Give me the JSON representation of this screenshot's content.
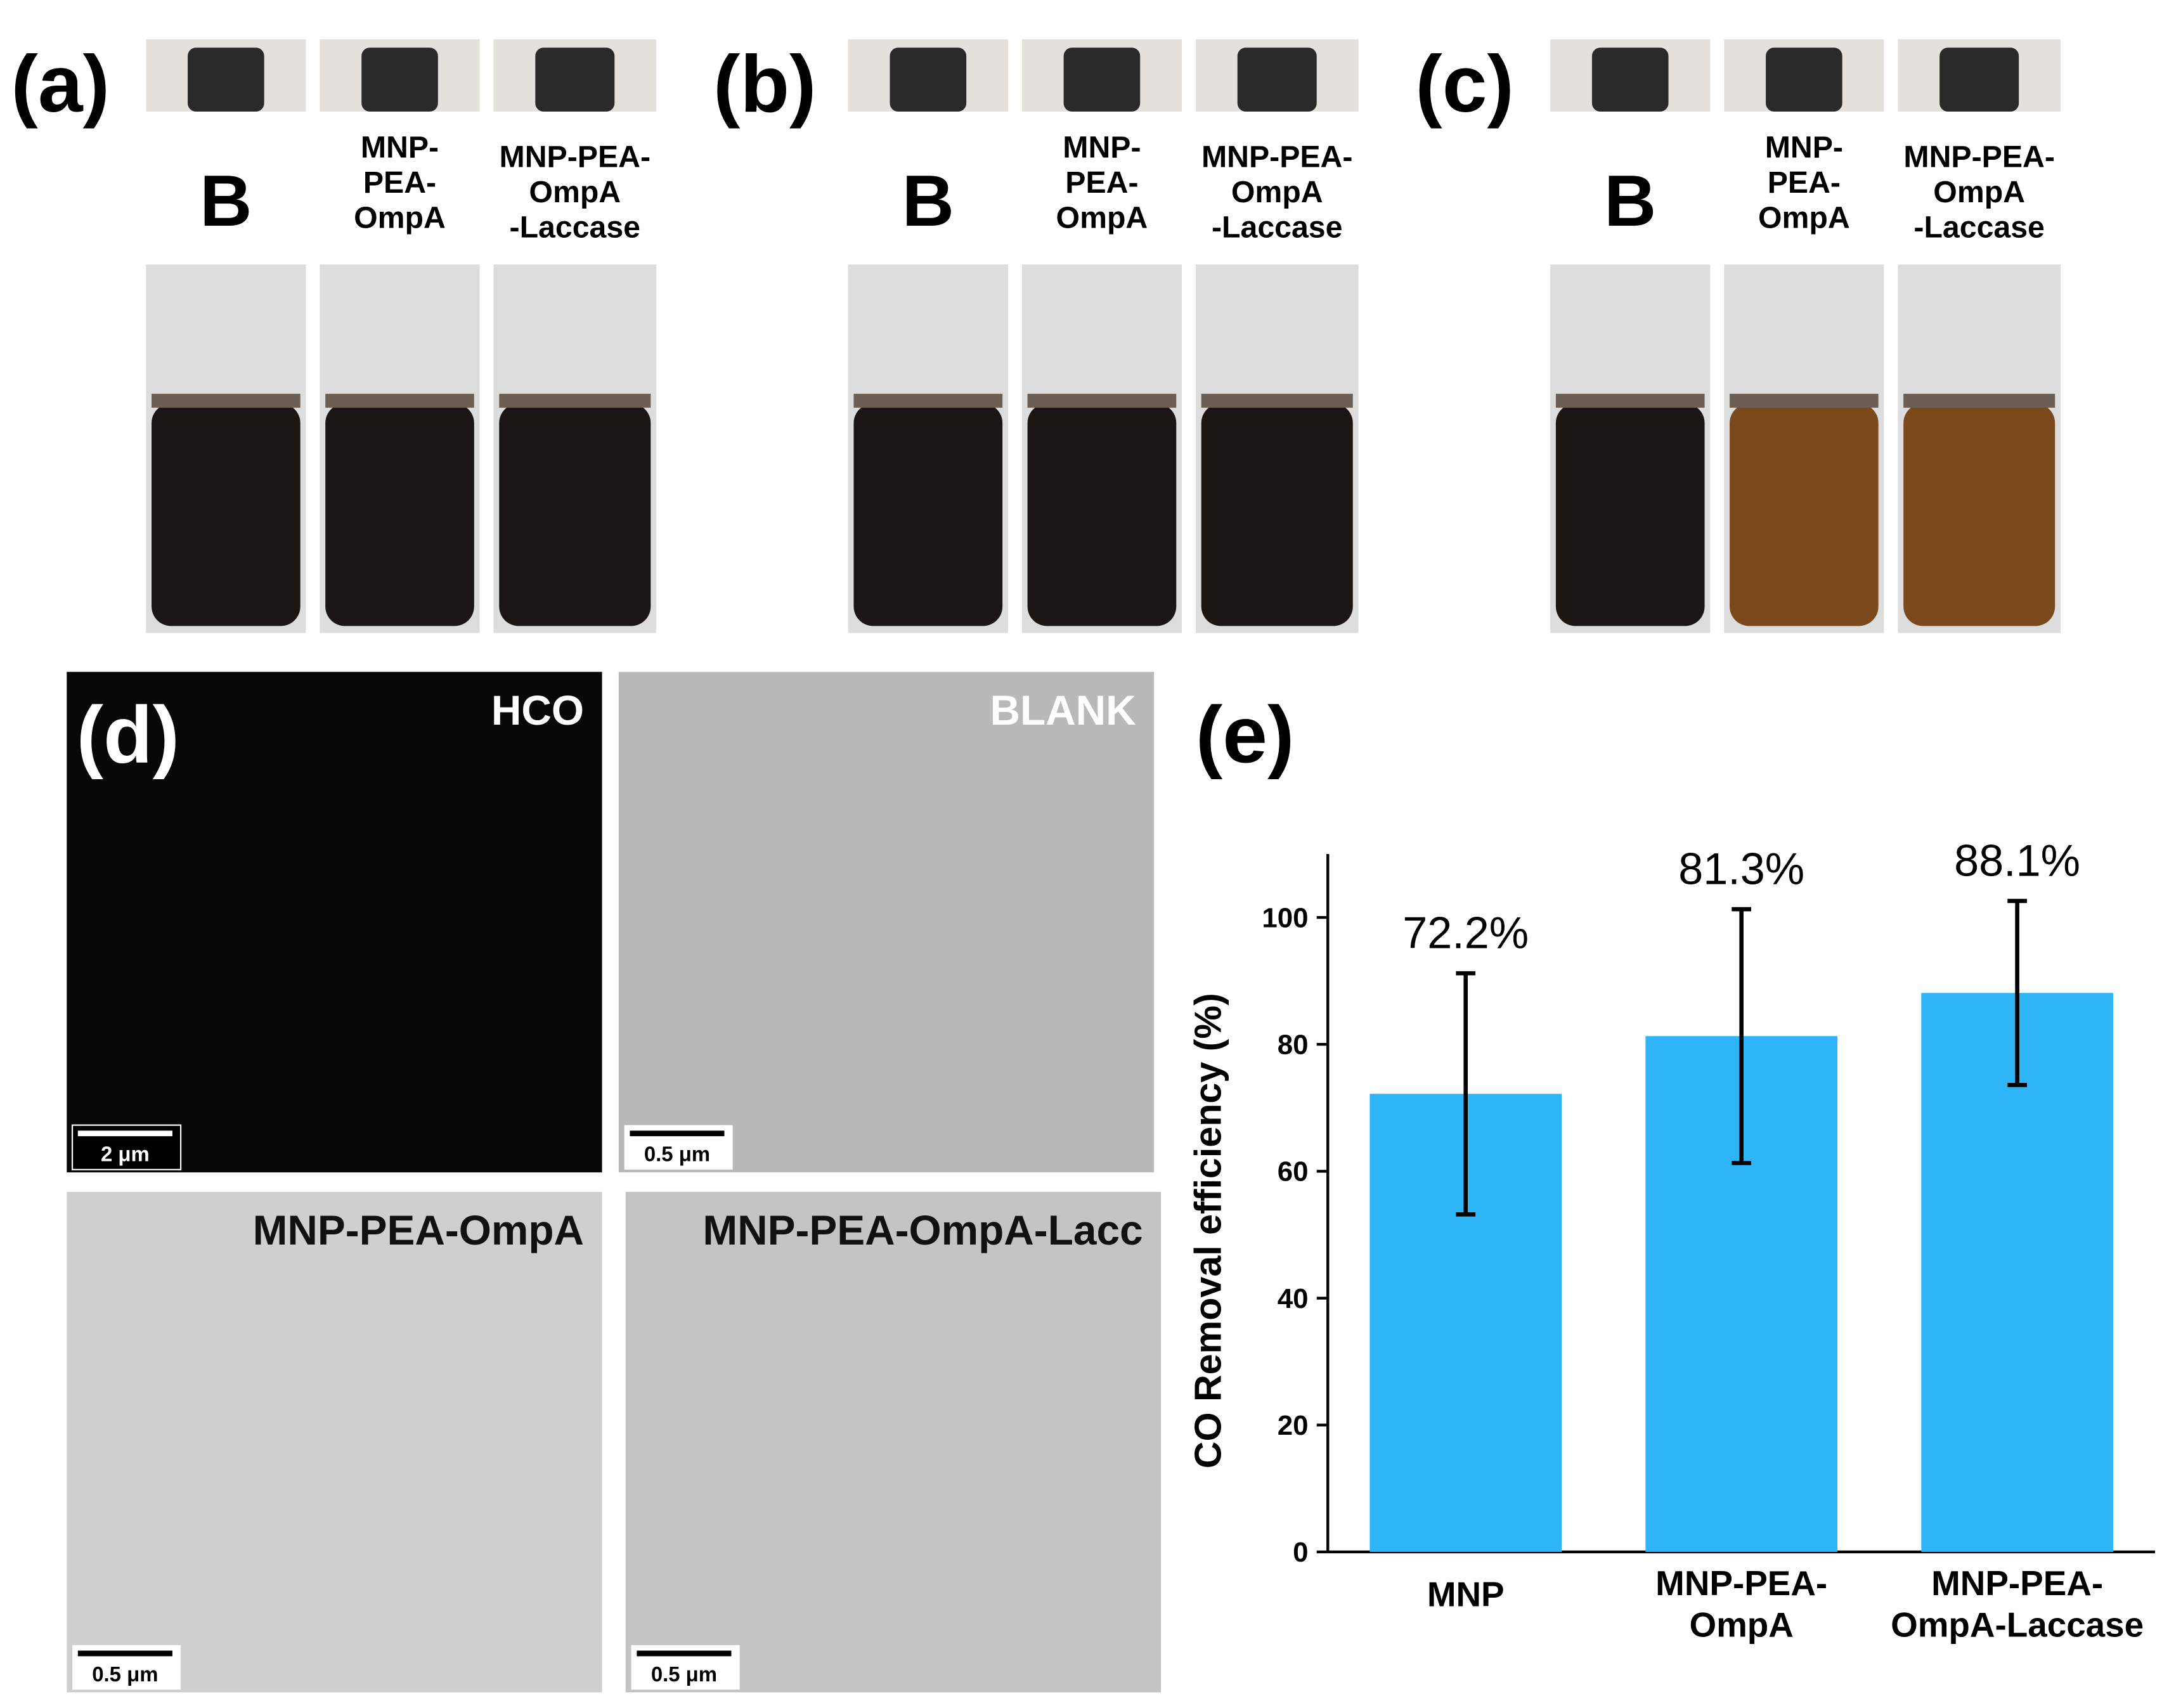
{
  "panels": {
    "photos": [
      {
        "label": "(a)",
        "vials": [
          "B",
          "MNP-\nPEA-\nOmpA",
          "MNP-PEA-\nOmpA\n-Laccase"
        ]
      },
      {
        "label": "(b)",
        "vials": [
          "B",
          "MNP-\nPEA-\nOmpA",
          "MNP-PEA-\nOmpA\n-Laccase"
        ]
      },
      {
        "label": "(c)",
        "vials": [
          "B",
          "MNP-\nPEA-\nOmpA",
          "MNP-PEA-\nOmpA\n-Laccase"
        ]
      }
    ],
    "microscopy": {
      "label": "(d)",
      "images": [
        {
          "title": "HCO",
          "scale": "2 μm"
        },
        {
          "title": "BLANK",
          "scale": "0.5 μm"
        },
        {
          "title": "MNP-PEA-OmpA",
          "scale": "0.5 μm"
        },
        {
          "title": "MNP-PEA-OmpA-Lacc",
          "scale": "0.5 μm"
        }
      ]
    },
    "chart_label": "(e)"
  },
  "chart_data": {
    "type": "bar",
    "ylabel": "CO Removal efficiency (%)",
    "categories": [
      "MNP",
      "MNP-PEA-\nOmpA",
      "MNP-PEA-\nOmpA-Laccase"
    ],
    "values": [
      72.2,
      81.3,
      88.1
    ],
    "value_labels": [
      "72.2%",
      "81.3%",
      "88.1%"
    ],
    "errors": [
      19,
      20,
      14.5
    ],
    "color": "#2eb5f8",
    "ylim": [
      0,
      110
    ],
    "yticks": [
      0,
      20,
      40,
      60,
      80,
      100
    ]
  }
}
